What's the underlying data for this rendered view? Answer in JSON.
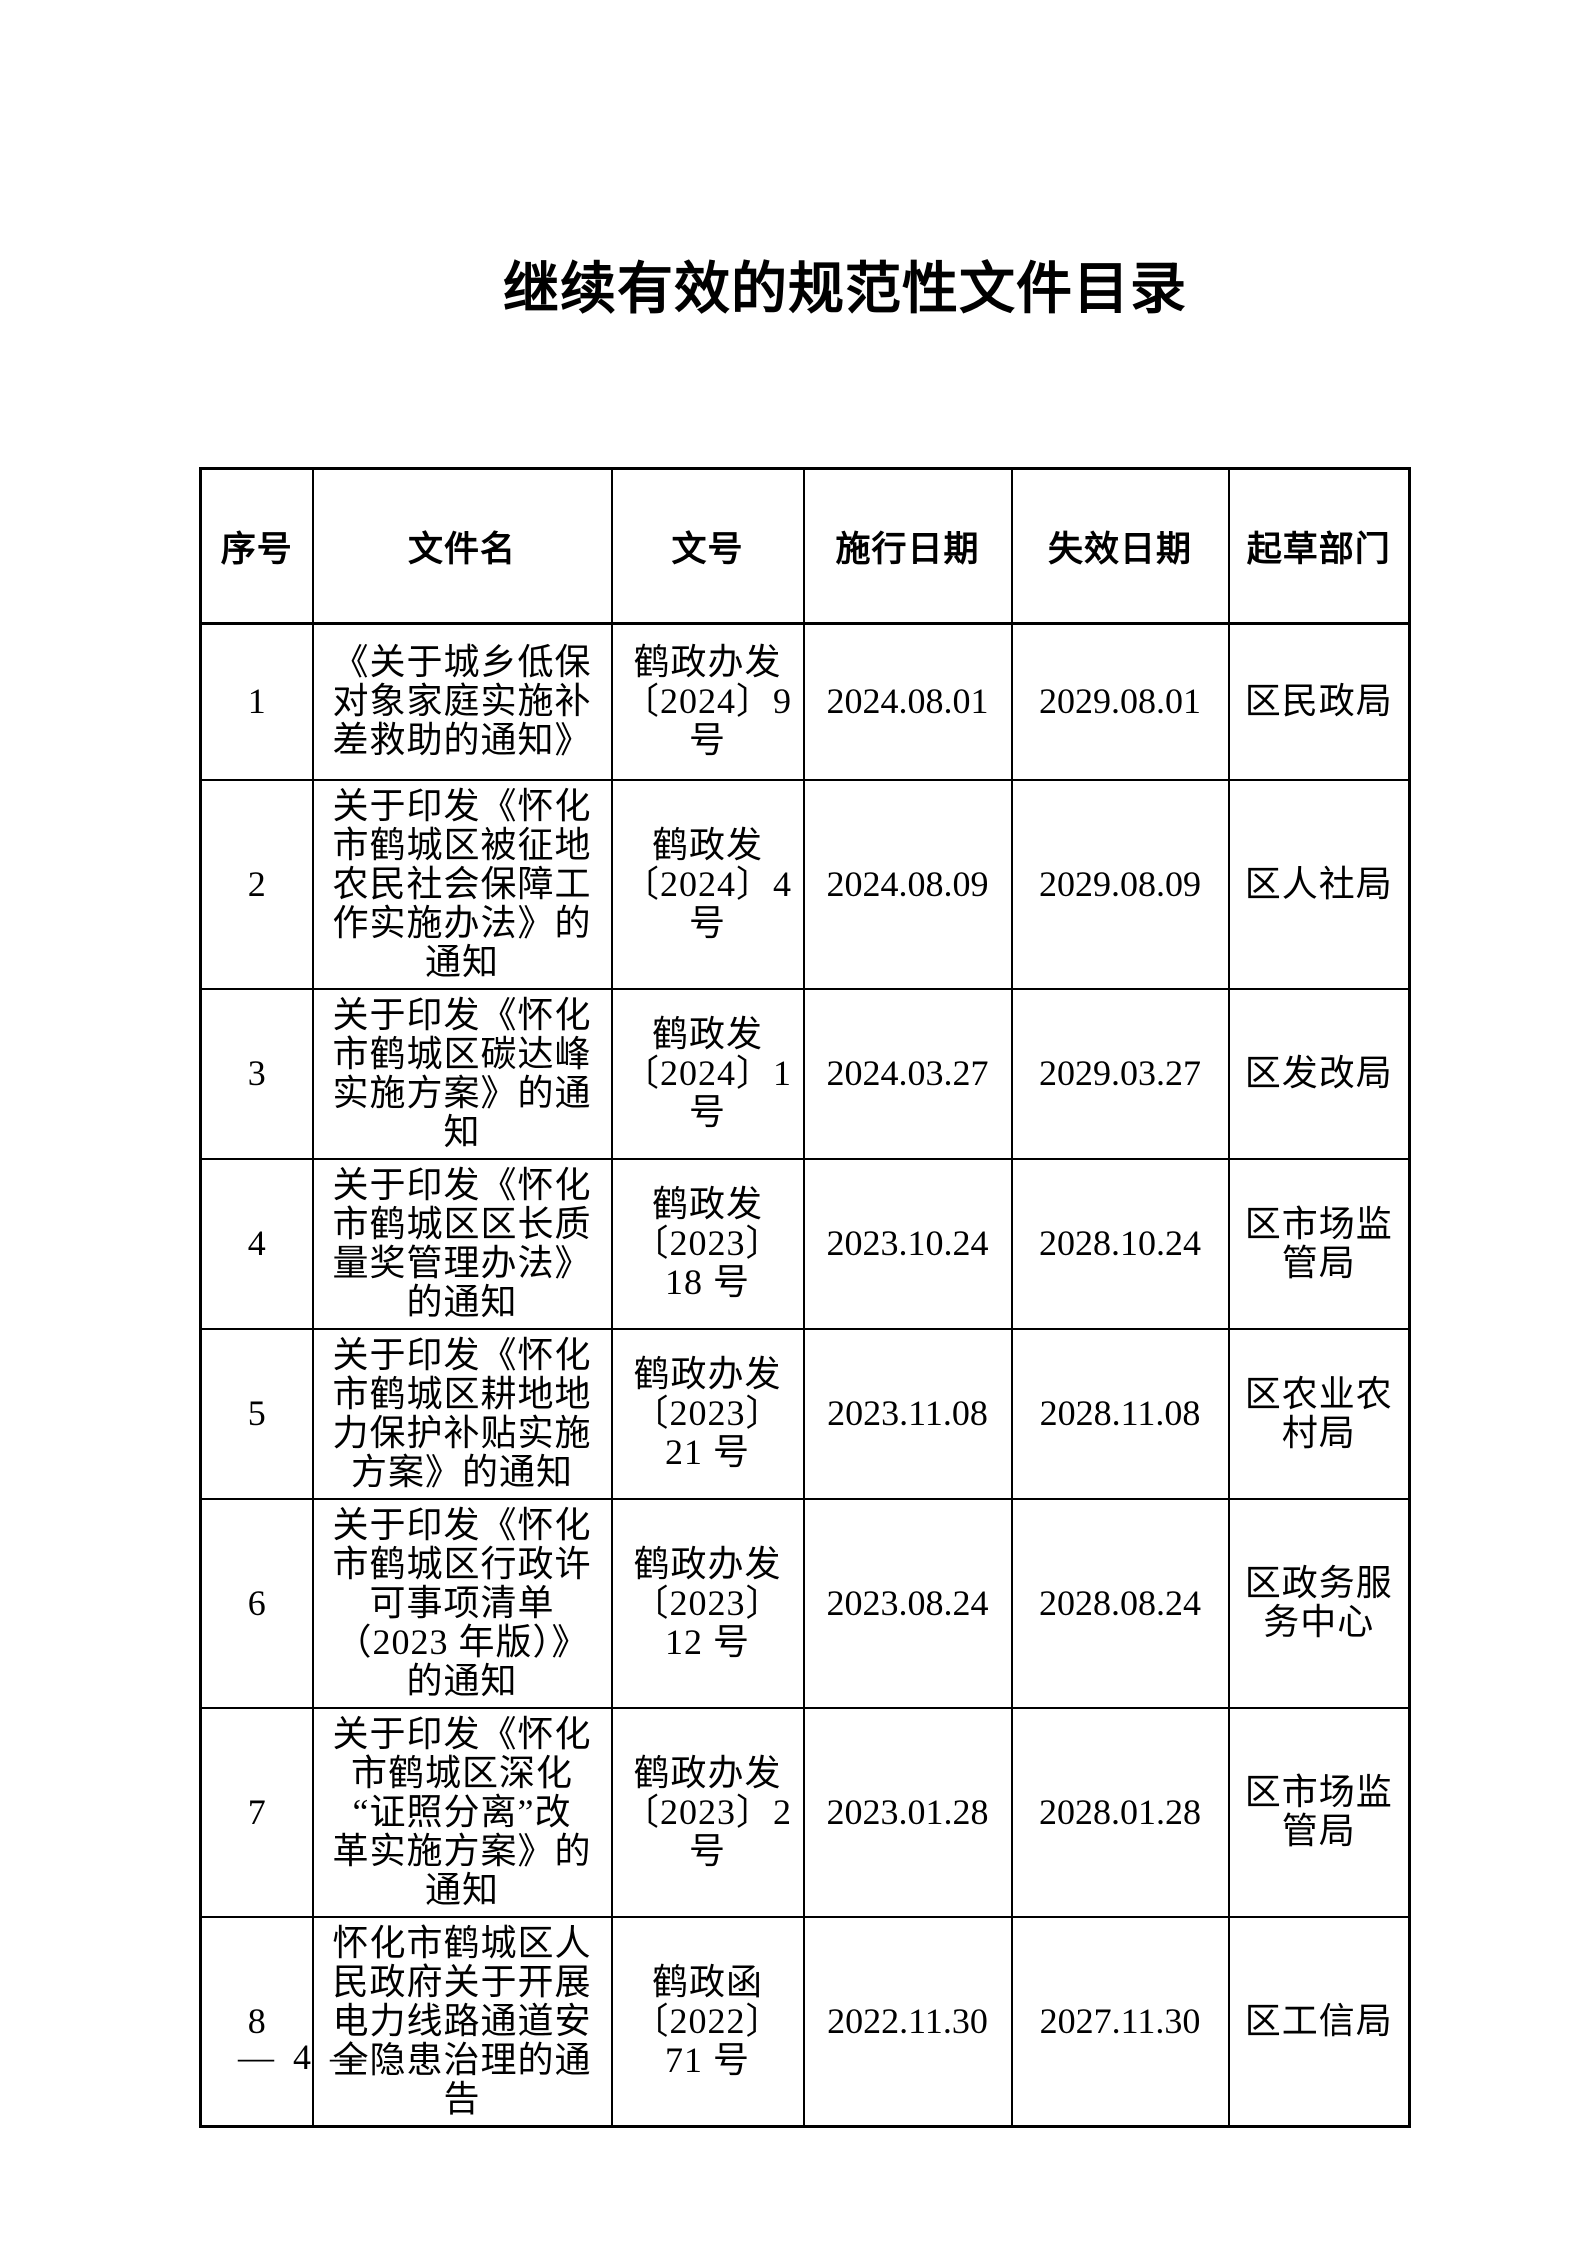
{
  "page": {
    "title": "继续有效的规范性文件目录",
    "page_number": "— 4 —"
  },
  "table": {
    "headers": [
      "序号",
      "文件名",
      "文号",
      "施行日期",
      "失效日期",
      "起草部门"
    ],
    "rows": [
      {
        "no": "1",
        "name": "《关于城乡低保\n对象家庭实施补\n差救助的通知》",
        "doc_no": "鹤政办发\n〔2024〕9\n号",
        "effective": "2024.08.01",
        "expiry": "2029.08.01",
        "department": "区民政局"
      },
      {
        "no": "2",
        "name": "关于印发《怀化\n市鹤城区被征地\n农民社会保障工\n作实施办法》的\n通知",
        "doc_no": "鹤政发\n〔2024〕4\n号",
        "effective": "2024.08.09",
        "expiry": "2029.08.09",
        "department": "区人社局"
      },
      {
        "no": "3",
        "name": "关于印发《怀化\n市鹤城区碳达峰\n实施方案》的通\n知",
        "doc_no": "鹤政发\n〔2024〕1\n号",
        "effective": "2024.03.27",
        "expiry": "2029.03.27",
        "department": "区发改局"
      },
      {
        "no": "4",
        "name": "关于印发《怀化\n市鹤城区区长质\n量奖管理办法》\n的通知",
        "doc_no": "鹤政发\n〔2023〕\n18 号",
        "effective": "2023.10.24",
        "expiry": "2028.10.24",
        "department": "区市场监\n管局"
      },
      {
        "no": "5",
        "name": "关于印发《怀化\n市鹤城区耕地地\n力保护补贴实施\n方案》的通知",
        "doc_no": "鹤政办发\n〔2023〕\n21 号",
        "effective": "2023.11.08",
        "expiry": "2028.11.08",
        "department": "区农业农\n村局"
      },
      {
        "no": "6",
        "name": "关于印发《怀化\n市鹤城区行政许\n可事项清单\n（2023 年版）》\n的通知",
        "doc_no": "鹤政办发\n〔2023〕\n12 号",
        "effective": "2023.08.24",
        "expiry": "2028.08.24",
        "department": "区政务服\n务中心"
      },
      {
        "no": "7",
        "name": "关于印发《怀化\n市鹤城区深化\n“证照分离”改\n革实施方案》的\n通知",
        "doc_no": "鹤政办发\n〔2023〕2\n号",
        "effective": "2023.01.28",
        "expiry": "2028.01.28",
        "department": "区市场监\n管局"
      },
      {
        "no": "8",
        "name": "怀化市鹤城区人\n民政府关于开展\n电力线路通道安\n全隐患治理的通\n告",
        "doc_no": "鹤政函\n〔2022〕\n71 号",
        "effective": "2022.11.30",
        "expiry": "2027.11.30",
        "department": "区工信局"
      }
    ]
  }
}
